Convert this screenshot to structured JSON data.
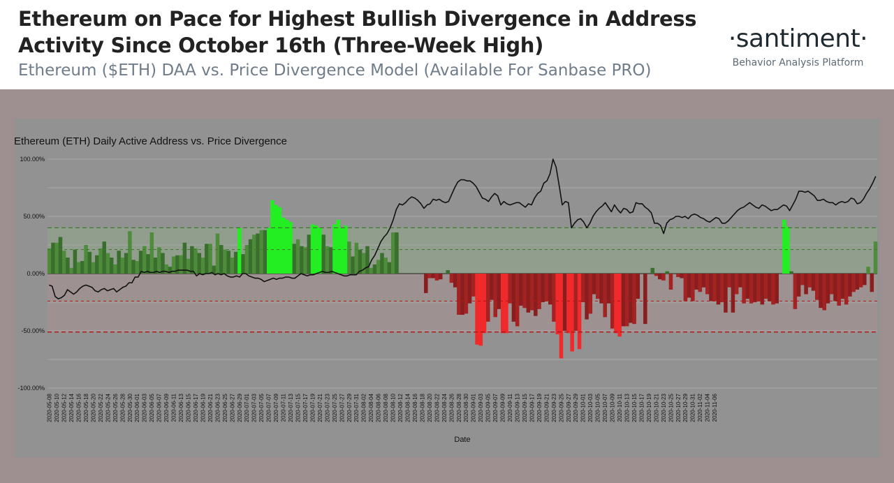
{
  "header": {
    "title": "Ethereum on Pace for Highest Bullish Divergence in Address Activity Since October 16th (Three-Week High)",
    "subtitle": "Ethereum ($ETH) DAA vs. Price Divergence Model (Available For Sanbase PRO)",
    "brand_name": "·santiment·",
    "brand_tagline": "Behavior Analysis Platform"
  },
  "colors": {
    "outer_bg": "#9e9090",
    "plot_bg": "#929292",
    "bull": "#4e8c3c",
    "bull_dark": "#3a6e2c",
    "bull_strong": "#22ee22",
    "bear": "#a32222",
    "bear_dark": "#8a1e1e",
    "bear_strong": "#f02a2a",
    "price_line": "#111111",
    "threshold_green": "#3d7a2e",
    "threshold_red": "#b01818"
  },
  "chart_data": {
    "type": "bar",
    "title": "Ethereum (ETH) Daily Active Address vs. Price Divergence",
    "xlabel": "Date",
    "ylabel": "",
    "ylim": [
      -100,
      100
    ],
    "yticks": [
      "100.00%",
      "50.00%",
      "0.00%",
      "-50.00%",
      "-100.00%"
    ],
    "ytick_values": [
      100,
      50,
      0,
      -50,
      -100
    ],
    "start_date": "2020-05-08",
    "tick_labels": [
      "2020-05-08",
      "2020-05-10",
      "2020-05-12",
      "2020-05-14",
      "2020-05-16",
      "2020-05-18",
      "2020-05-20",
      "2020-05-22",
      "2020-05-24",
      "2020-05-26",
      "2020-05-28",
      "2020-05-30",
      "2020-06-01",
      "2020-06-03",
      "2020-06-05",
      "2020-06-07",
      "2020-06-09",
      "2020-06-11",
      "2020-06-13",
      "2020-06-15",
      "2020-06-17",
      "2020-06-19",
      "2020-06-21",
      "2020-06-23",
      "2020-06-25",
      "2020-06-27",
      "2020-06-29",
      "2020-07-01",
      "2020-07-03",
      "2020-07-05",
      "2020-07-07",
      "2020-07-09",
      "2020-07-11",
      "2020-07-13",
      "2020-07-15",
      "2020-07-17",
      "2020-07-19",
      "2020-07-21",
      "2020-07-23",
      "2020-07-25",
      "2020-07-27",
      "2020-07-29",
      "2020-07-31",
      "2020-08-02",
      "2020-08-04",
      "2020-08-06",
      "2020-08-08",
      "2020-08-10",
      "2020-08-12",
      "2020-08-14",
      "2020-08-16",
      "2020-08-18",
      "2020-08-20",
      "2020-08-22",
      "2020-08-24",
      "2020-08-26",
      "2020-08-28",
      "2020-08-30",
      "2020-09-01",
      "2020-09-03",
      "2020-09-05",
      "2020-09-07",
      "2020-09-09",
      "2020-09-11",
      "2020-09-13",
      "2020-09-15",
      "2020-09-17",
      "2020-09-19",
      "2020-09-21",
      "2020-09-23",
      "2020-09-25",
      "2020-09-27",
      "2020-09-29",
      "2020-10-01",
      "2020-10-03",
      "2020-10-05",
      "2020-10-07",
      "2020-10-09",
      "2020-10-11",
      "2020-10-13",
      "2020-10-15",
      "2020-10-17",
      "2020-10-19",
      "2020-10-21",
      "2020-10-23",
      "2020-10-25",
      "2020-10-27",
      "2020-10-29",
      "2020-10-31",
      "2020-11-02",
      "2020-11-04",
      "2020-11-06"
    ],
    "thresholds": {
      "green_strong": 40,
      "green_weak": 21,
      "red_weak": -24,
      "red_strong": -51
    },
    "series": [
      {
        "values": [
          22,
          27,
          27,
          32,
          20,
          14,
          5,
          21,
          10,
          11,
          25,
          19,
          10,
          16,
          22,
          28,
          18,
          14,
          8,
          20,
          14,
          18,
          37,
          12,
          11,
          20,
          24,
          17,
          36,
          14,
          23,
          18,
          8,
          6,
          15,
          16,
          16,
          27,
          13,
          24,
          22,
          18,
          14,
          26,
          26,
          7,
          35,
          25,
          21,
          20,
          14,
          19,
          40,
          17,
          25,
          30,
          34,
          35,
          38,
          38,
          40,
          64,
          60,
          58,
          49,
          47,
          45,
          26,
          30,
          24,
          23,
          34,
          43,
          42,
          40,
          34,
          24,
          23,
          43,
          47,
          40,
          42,
          28,
          15,
          27,
          21,
          18,
          24,
          5,
          8,
          12,
          18,
          14,
          10,
          36,
          36,
          0,
          0,
          0,
          0,
          0,
          0,
          0,
          -17,
          -4,
          -4,
          -6,
          -5,
          0,
          3,
          -8,
          -12,
          -36,
          -36,
          -35,
          -26,
          -20,
          -62,
          -63,
          -52,
          -42,
          -23,
          -38,
          -31,
          -52,
          -52,
          -26,
          -42,
          -46,
          -28,
          -30,
          -34,
          -32,
          -37,
          -31,
          -25,
          -24,
          -27,
          -42,
          -53,
          -74,
          -50,
          -52,
          -68,
          -50,
          -66,
          -25,
          -40,
          -35,
          -18,
          -22,
          -26,
          -38,
          -26,
          -48,
          -52,
          -55,
          -46,
          -46,
          -43,
          -44,
          -22,
          0,
          -44,
          0,
          5,
          -2,
          -5,
          -6,
          2,
          -14,
          0,
          -3,
          -4,
          -24,
          -21,
          -24,
          -14,
          -16,
          -12,
          -18,
          -24,
          -24,
          -27,
          -25,
          -34,
          -12,
          -34,
          -18,
          -12,
          -26,
          -22,
          -26,
          -25,
          -24,
          -27,
          -22,
          -24,
          -27,
          -26,
          0,
          47,
          41,
          2,
          -31,
          -20,
          -10,
          -18,
          -12,
          -15,
          -23,
          -30,
          -32,
          -26,
          -18,
          -24,
          -28,
          -22,
          -27,
          -20,
          -16,
          -14,
          -12,
          -10,
          6,
          -16,
          28
        ]
      },
      {
        "values": [
          -10,
          -11,
          -20,
          -22,
          -21,
          -19,
          -14,
          -16,
          -18,
          -16,
          -13,
          -11,
          -10,
          -11,
          -12,
          -15,
          -16,
          -14,
          -13,
          -15,
          -14,
          -13,
          -16,
          -14,
          -12,
          -11,
          -8,
          -8,
          -3,
          -3,
          2,
          1,
          2,
          1,
          1,
          2,
          1,
          2,
          2,
          1,
          2,
          2,
          3,
          3,
          3,
          3,
          2,
          2,
          -2,
          0,
          -1,
          0,
          0,
          1,
          -1,
          0,
          -1,
          0,
          -2,
          -3,
          -3,
          -2,
          -3,
          0,
          0,
          -2,
          -3,
          -4,
          -4,
          -5,
          -7,
          -6,
          -5,
          -4,
          -5,
          -4,
          -4,
          -3,
          -3,
          -4,
          -4,
          -2,
          0,
          -1,
          -2,
          -1,
          -1,
          0,
          1,
          2,
          1,
          1,
          2,
          1,
          0,
          -1,
          -2,
          -2,
          -1,
          -1,
          -1,
          2,
          3,
          5,
          6,
          12,
          16,
          22,
          28,
          32,
          35,
          40,
          47,
          56,
          61,
          60,
          62,
          65,
          67,
          66,
          64,
          61,
          57,
          60,
          61,
          65,
          64,
          65,
          63,
          62,
          63,
          69,
          75,
          80,
          82,
          82,
          81,
          81,
          79,
          76,
          71,
          66,
          65,
          63,
          67,
          70,
          68,
          60,
          63,
          61,
          60,
          61,
          62,
          62,
          60,
          58,
          61,
          60,
          66,
          70,
          72,
          79,
          81,
          87,
          100,
          93,
          77,
          60,
          63,
          62,
          40,
          44,
          47,
          48,
          45,
          40,
          44,
          50,
          54,
          57,
          59,
          62,
          58,
          54,
          60,
          56,
          53,
          57,
          56,
          53,
          54,
          62,
          61,
          61,
          58,
          56,
          53,
          44,
          44,
          42,
          35,
          44,
          47,
          48,
          50,
          50,
          49,
          50,
          48,
          51,
          52,
          51,
          49,
          48,
          46,
          45,
          47,
          49,
          48,
          44,
          44,
          46,
          49,
          52,
          55,
          57,
          58,
          60,
          62,
          60,
          58,
          57,
          60,
          59,
          57,
          55,
          56,
          56,
          58,
          60,
          59,
          55,
          60,
          65,
          72,
          72,
          71,
          72,
          70,
          68,
          64,
          64,
          65,
          63,
          62,
          62,
          60,
          62,
          63,
          62,
          63,
          66,
          65,
          61,
          62,
          65,
          70,
          74,
          79,
          85
        ]
      }
    ],
    "legend": "none",
    "grid": "horizontal"
  }
}
